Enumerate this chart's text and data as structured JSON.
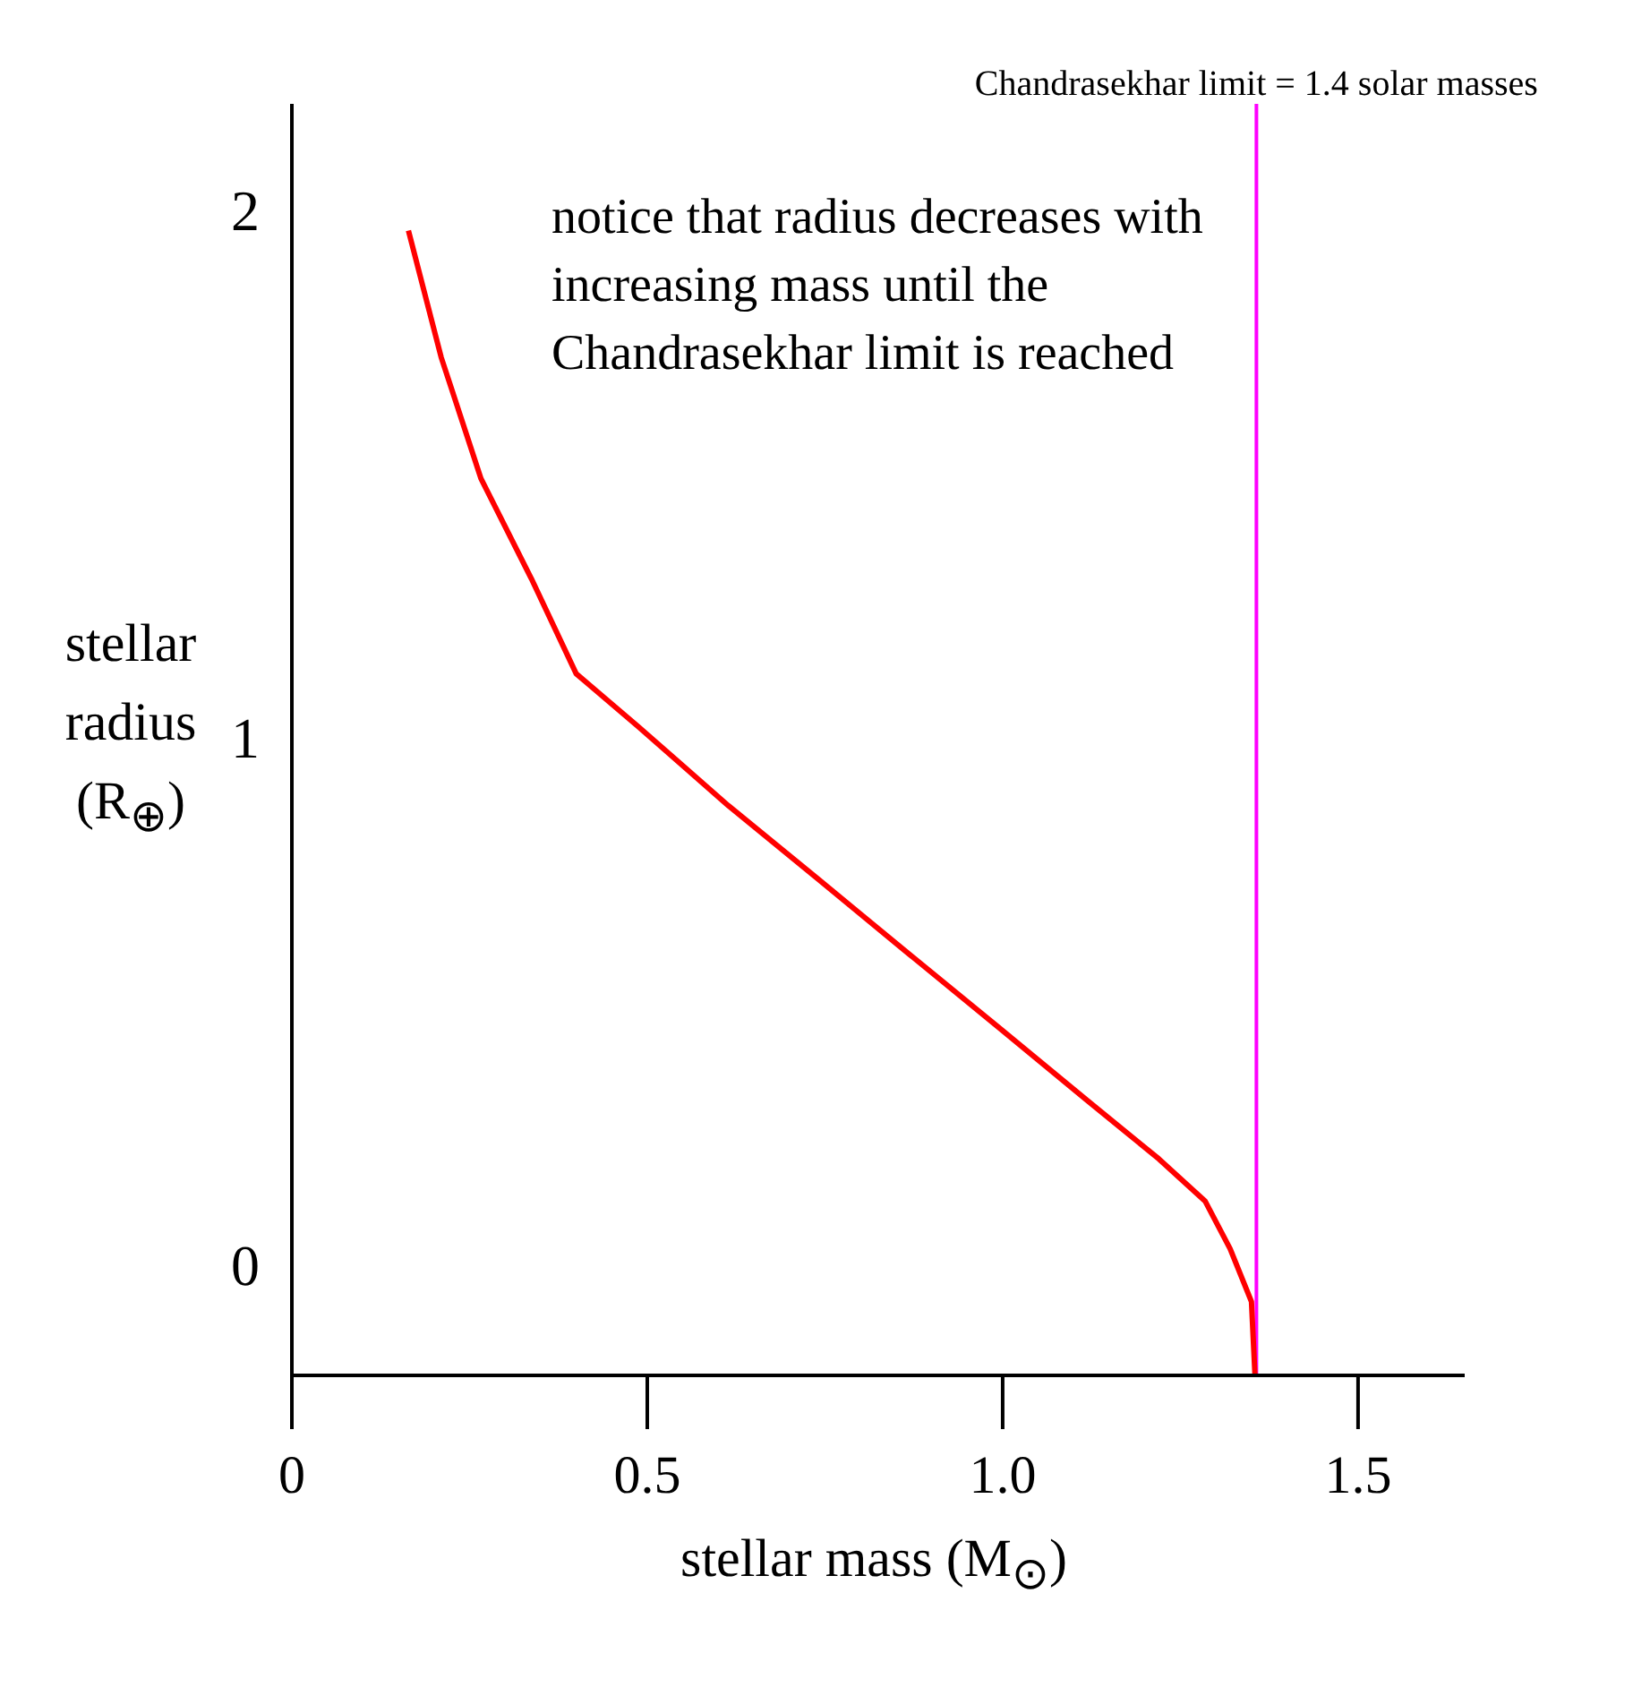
{
  "chart_data": {
    "type": "line",
    "xlabel": "stellar mass (M$_{⊙}$)",
    "ylabel": "stellar radius (R$_{⊕}$)",
    "annotations": [
      "notice that radius decreases with increasing mass until the Chandrasekhar limit is reached"
    ],
    "x": [
      0.164,
      0.21,
      0.266,
      0.337,
      0.4,
      0.487,
      0.614,
      0.741,
      0.867,
      0.994,
      1.12,
      1.22,
      1.285,
      1.32,
      1.35,
      1.355
    ],
    "series": [
      {
        "color": "#ff0000",
        "values": [
          1.96,
          1.72,
          1.49,
          1.3,
          1.12,
          1.02,
          0.87,
          0.73,
          0.59,
          0.45,
          0.31,
          0.2,
          0.12,
          0.03,
          -0.07,
          -0.21
        ]
      }
    ],
    "xlim": [
      0,
      1.65
    ],
    "ylim": [
      -0.21,
      2.2
    ],
    "xticks": [
      {
        "value": 0,
        "label": "0"
      },
      {
        "value": 0.5,
        "label": "0.5"
      },
      {
        "value": 1,
        "label": "1.0"
      },
      {
        "value": 1.5,
        "label": "1.5"
      }
    ],
    "yticks": [
      0,
      1,
      2
    ],
    "ref_lines": [
      {
        "axis": "x",
        "value": 1.357,
        "label": "Chandrasekhar limit = 1.4 solar masses",
        "color": "#ff00ff"
      }
    ],
    "grid": false,
    "marker": "none",
    "line_style": "solid"
  }
}
